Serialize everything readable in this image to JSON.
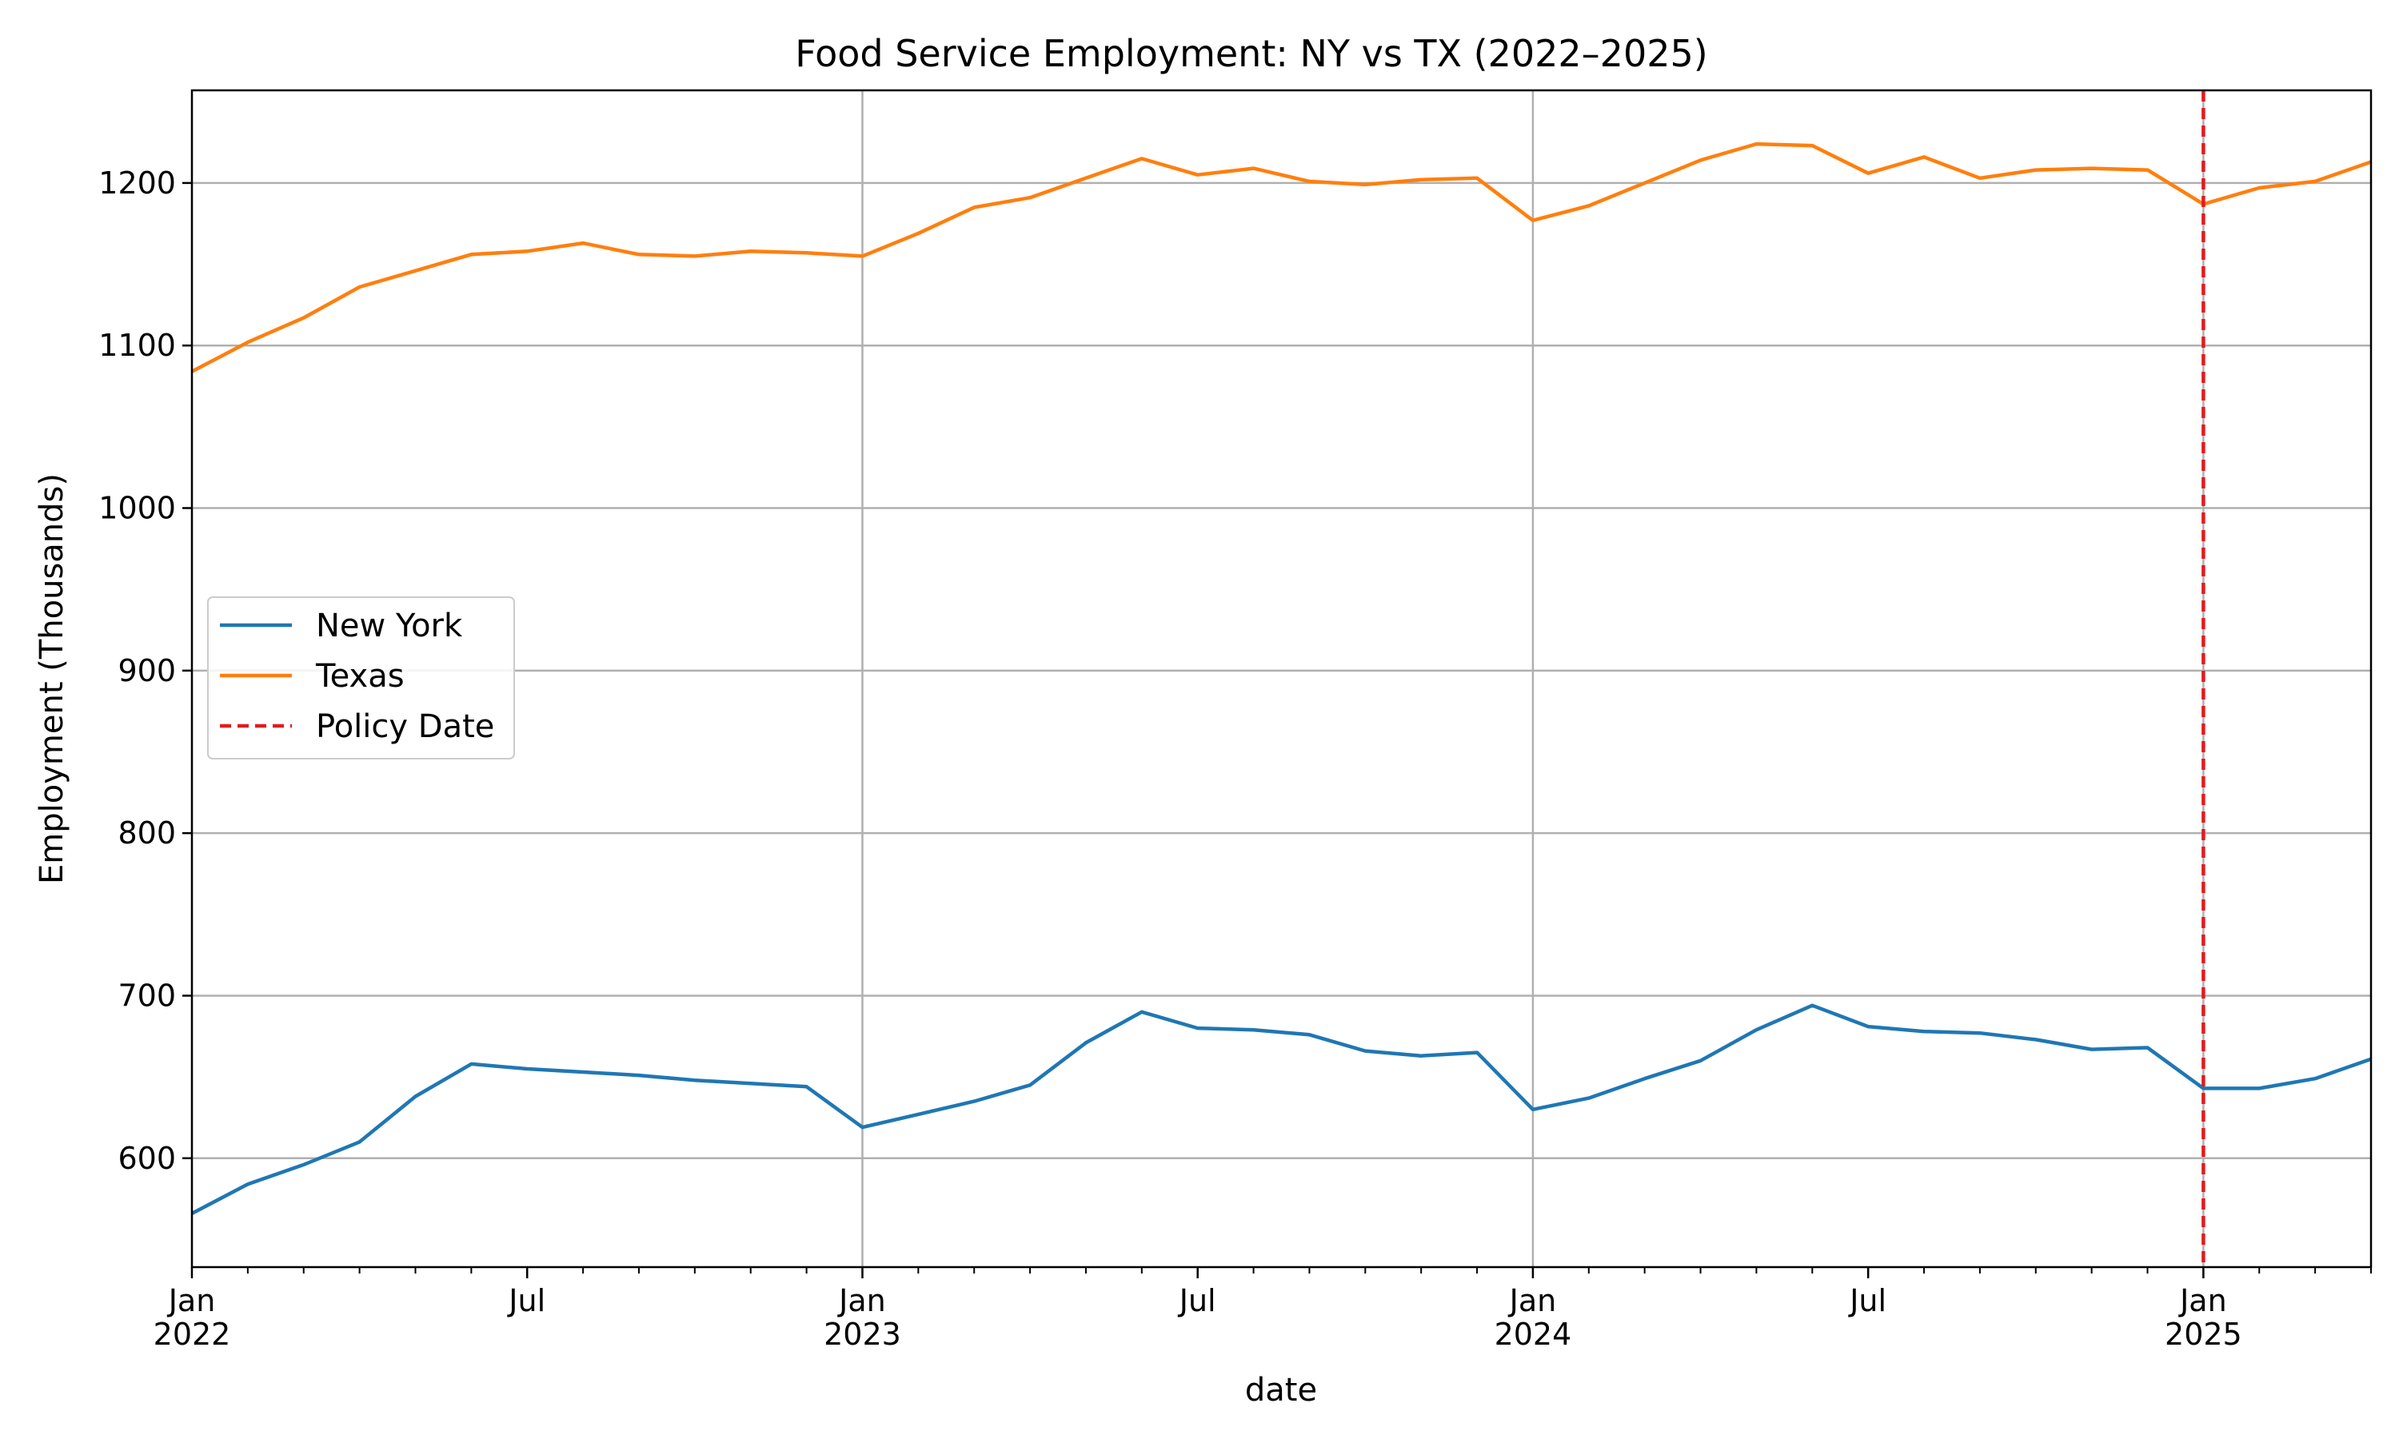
{
  "chart_data": {
    "type": "line",
    "title": "Food Service Employment: NY vs TX (2022–2025)",
    "xlabel": "date",
    "ylabel": "Employment (Thousands)",
    "ylim": [
      533,
      1257
    ],
    "yticks": [
      600,
      700,
      800,
      900,
      1000,
      1100,
      1200
    ],
    "x_range_months": [
      0,
      39
    ],
    "xticks_major": [
      {
        "month": 0,
        "label": "Jan",
        "sublabel": "2022"
      },
      {
        "month": 6,
        "label": "Jul",
        "sublabel": ""
      },
      {
        "month": 12,
        "label": "Jan",
        "sublabel": "2023"
      },
      {
        "month": 18,
        "label": "Jul",
        "sublabel": ""
      },
      {
        "month": 24,
        "label": "Jan",
        "sublabel": "2024"
      },
      {
        "month": 30,
        "label": "Jul",
        "sublabel": ""
      },
      {
        "month": 36,
        "label": "Jan",
        "sublabel": "2025"
      }
    ],
    "grid": true,
    "legend_position": "center-left",
    "series": [
      {
        "name": "New York",
        "color": "#1f77b4",
        "style": "solid",
        "values": [
          566,
          584,
          596,
          610,
          638,
          658,
          655,
          653,
          651,
          648,
          646,
          644,
          619,
          627,
          635,
          645,
          671,
          690,
          680,
          679,
          676,
          666,
          663,
          665,
          630,
          637,
          649,
          660,
          679,
          694,
          681,
          678,
          677,
          673,
          667,
          668,
          643,
          643,
          649,
          661
        ]
      },
      {
        "name": "Texas",
        "color": "#ff7f0e",
        "style": "solid",
        "values": [
          1084,
          1102,
          1117,
          1136,
          1146,
          1156,
          1158,
          1163,
          1156,
          1155,
          1158,
          1157,
          1155,
          1169,
          1185,
          1191,
          1203,
          1215,
          1205,
          1209,
          1201,
          1199,
          1202,
          1203,
          1177,
          1186,
          1200,
          1214,
          1224,
          1223,
          1206,
          1216,
          1203,
          1208,
          1209,
          1208,
          1187,
          1197,
          1201,
          1213
        ]
      }
    ],
    "vline": {
      "name": "Policy Date",
      "month": 36,
      "color": "#e41a1c",
      "style": "dashed"
    }
  }
}
